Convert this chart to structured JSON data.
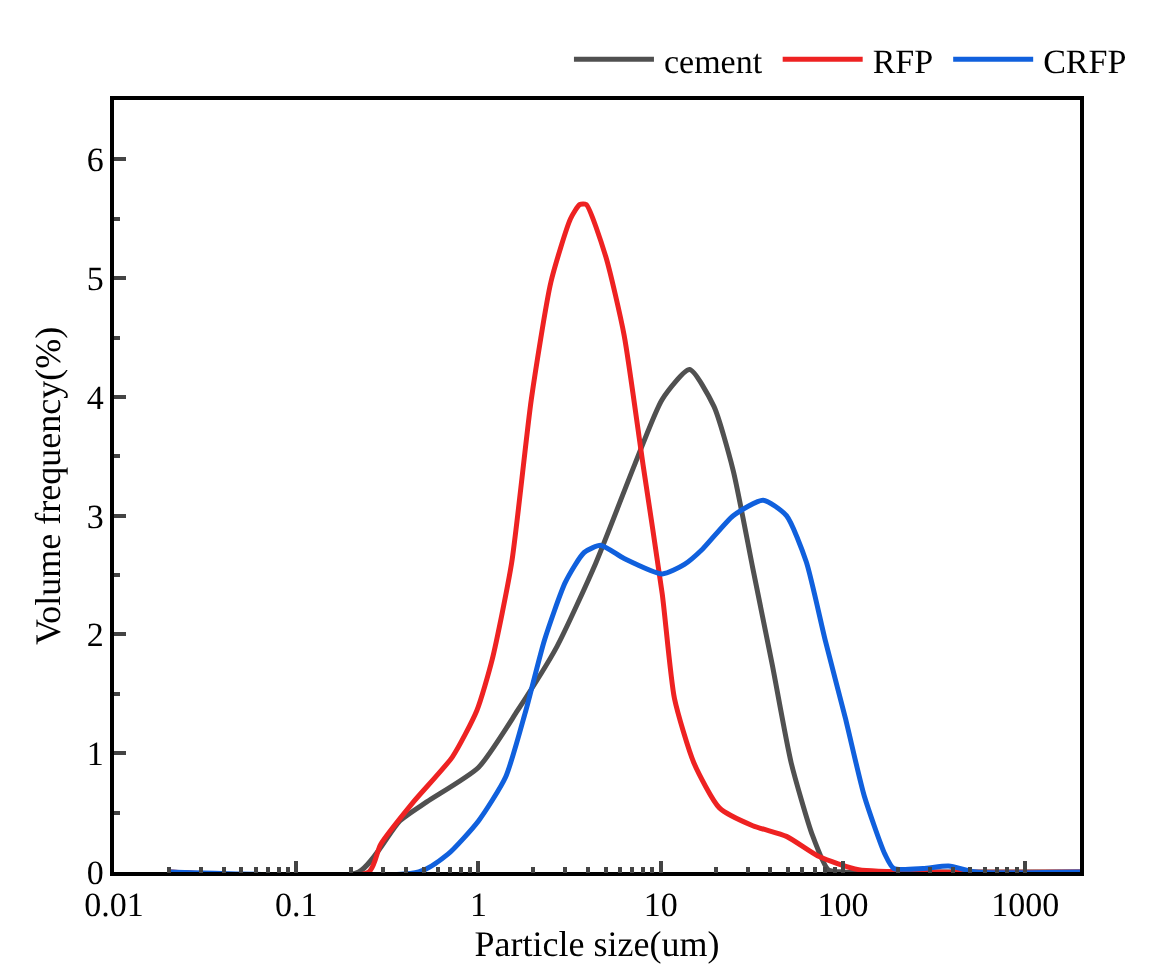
{
  "chart_data": {
    "type": "line",
    "xlabel": "Particle size(um)",
    "ylabel": "Volume frequency(%)",
    "log": "x",
    "xlim": [
      0.01,
      2000
    ],
    "xticks": [
      0.01,
      0.1,
      1,
      10,
      100,
      1000
    ],
    "ylim": [
      0,
      6.5
    ],
    "yticks": [
      0,
      1,
      2,
      3,
      4,
      5,
      6
    ],
    "grid": false,
    "legend": "top right",
    "marker": "none",
    "line_style": "solid",
    "series": [
      {
        "name": "cement",
        "color": "#505050",
        "x": [
          0.02,
          0.22,
          0.37,
          0.52,
          1.0,
          1.64,
          2.7,
          4.4,
          7.2,
          10.2,
          14.4,
          19.6,
          25,
          32,
          41,
          52,
          68,
          83,
          100,
          300,
          2000
        ],
        "values": [
          0,
          0,
          0.43,
          0.59,
          0.88,
          1.36,
          1.9,
          2.6,
          3.43,
          3.98,
          4.23,
          3.92,
          3.38,
          2.56,
          1.74,
          0.92,
          0.31,
          0.02,
          0,
          0,
          0
        ]
      },
      {
        "name": "RFP",
        "color": "#ee2222",
        "x": [
          0.02,
          0.25,
          0.29,
          0.44,
          0.72,
          0.98,
          1.19,
          1.52,
          1.95,
          2.5,
          3.2,
          3.6,
          3.9,
          5.0,
          6.3,
          8.0,
          10.2,
          11.9,
          15.2,
          21,
          32,
          49,
          74,
          122,
          300,
          2000
        ],
        "values": [
          0,
          0,
          0.23,
          0.59,
          0.97,
          1.36,
          1.79,
          2.6,
          3.98,
          4.97,
          5.5,
          5.62,
          5.62,
          5.18,
          4.52,
          3.43,
          2.34,
          1.46,
          0.92,
          0.54,
          0.39,
          0.3,
          0.13,
          0.02,
          0,
          0
        ]
      },
      {
        "name": "CRFP",
        "color": "#1060dd",
        "x": [
          0.02,
          0.47,
          0.68,
          1.0,
          1.41,
          1.82,
          2.3,
          3.0,
          3.8,
          4.7,
          6.3,
          10.2,
          13.5,
          17,
          25,
          36.5,
          49,
          63,
          80,
          103,
          131,
          170,
          190,
          275,
          380,
          540,
          2000
        ],
        "values": [
          0,
          0,
          0.15,
          0.43,
          0.8,
          1.36,
          1.95,
          2.44,
          2.69,
          2.75,
          2.64,
          2.51,
          2.59,
          2.72,
          3.0,
          3.13,
          3.0,
          2.61,
          1.95,
          1.3,
          0.64,
          0.15,
          0.03,
          0.03,
          0.05,
          0,
          0
        ]
      }
    ]
  }
}
